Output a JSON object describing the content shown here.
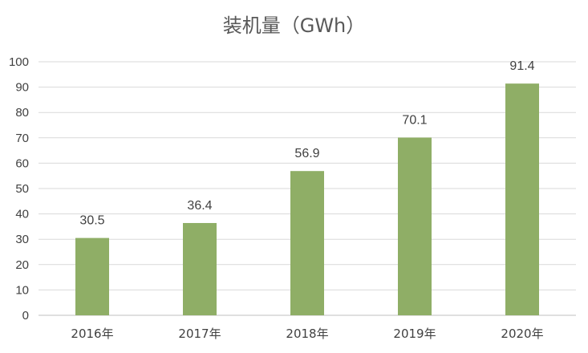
{
  "chart_data": {
    "type": "bar",
    "title": "装机量（GWh）",
    "categories": [
      "2016年",
      "2017年",
      "2018年",
      "2019年",
      "2020年"
    ],
    "values": [
      30.5,
      36.4,
      56.9,
      70.1,
      91.4
    ],
    "data_labels": [
      "30.5",
      "36.4",
      "56.9",
      "70.1",
      "91.4"
    ],
    "xlabel": "",
    "ylabel": "",
    "ylim": [
      0,
      100
    ],
    "yticks": [
      0,
      10,
      20,
      30,
      40,
      50,
      60,
      70,
      80,
      90,
      100
    ],
    "grid": true,
    "legend": "none",
    "colors": {
      "bar": "#8FAE66",
      "grid": "#D9D9D9",
      "text": "#404040"
    }
  }
}
